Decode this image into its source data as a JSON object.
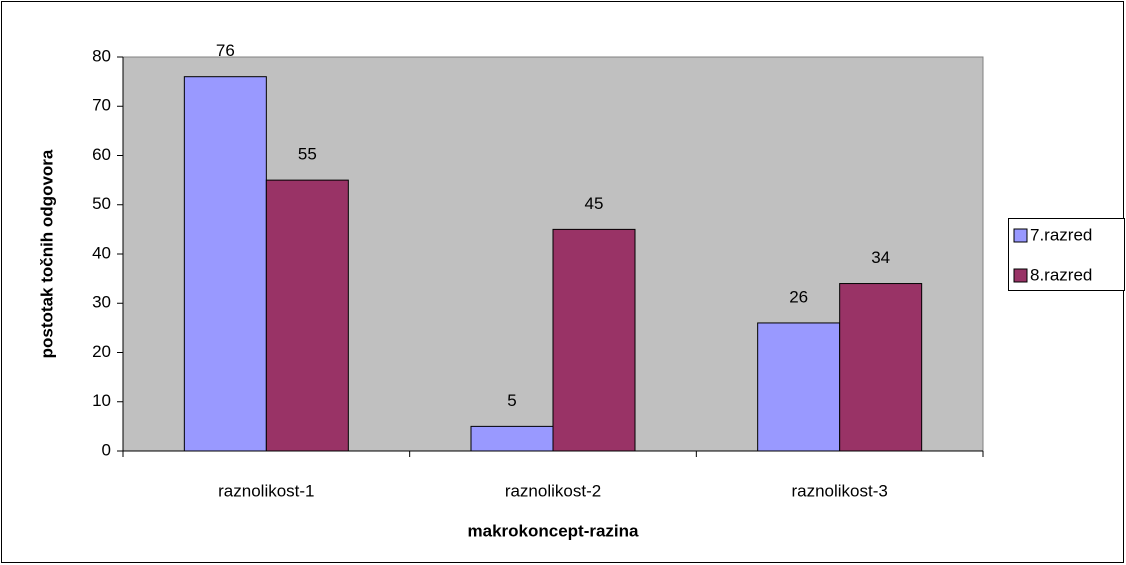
{
  "chart_data": {
    "type": "bar",
    "x_label": "makrokoncept-razina",
    "y_label": "postotak točnih odgovora",
    "categories": [
      "raznolikost-1",
      "raznolikost-2",
      "raznolikost-3"
    ],
    "series": [
      {
        "name": "7.razred",
        "color": "#9999ff",
        "values": [
          76,
          5,
          26
        ]
      },
      {
        "name": "8.razred",
        "color": "#993366",
        "values": [
          55,
          45,
          34
        ]
      }
    ],
    "ylim": [
      0,
      80
    ],
    "yticks": [
      0,
      10,
      20,
      30,
      40,
      50,
      60,
      70,
      80
    ],
    "legend": "right",
    "plot_background": "#c0c0c0"
  }
}
